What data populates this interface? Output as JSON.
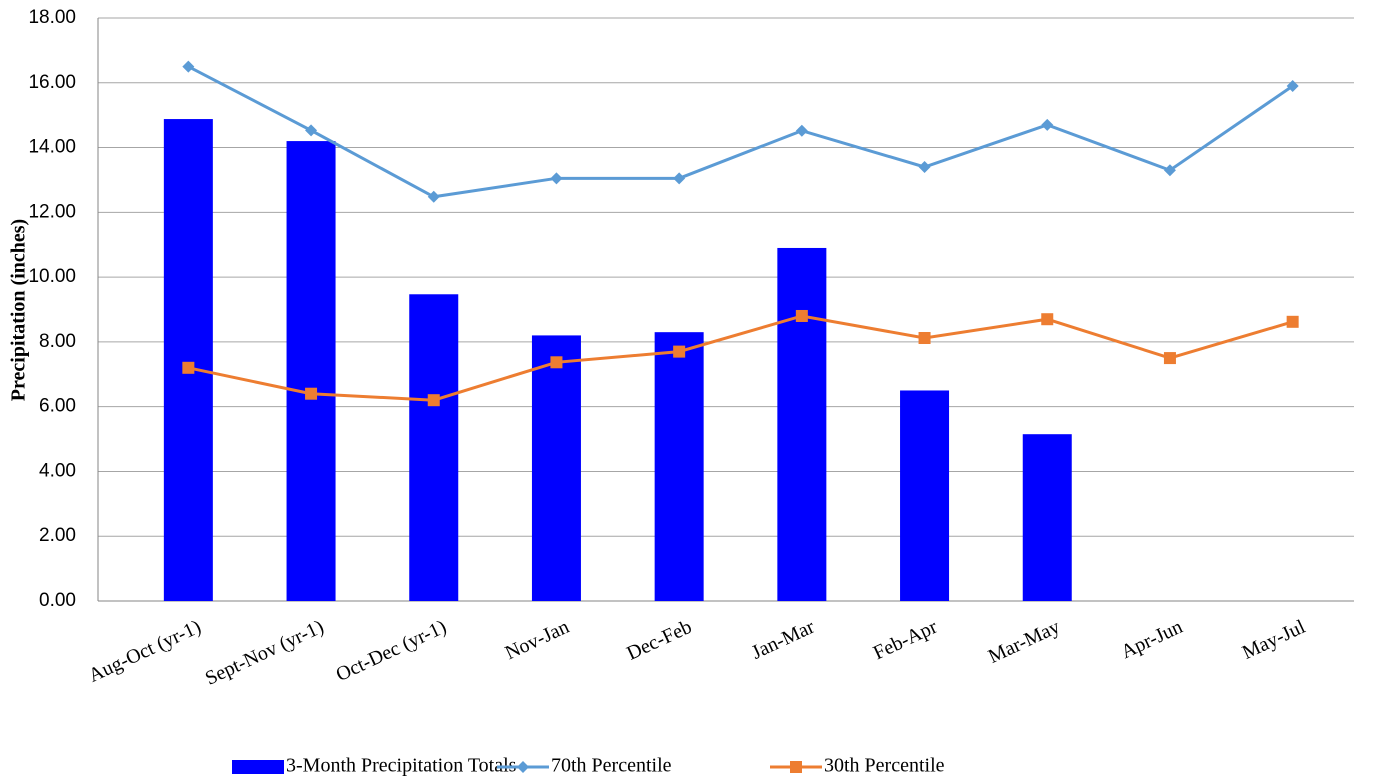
{
  "chart_data": {
    "type": "bar-line",
    "y_label": "Precipitation (inches)",
    "categories": [
      "Aug-Oct (yr-1)",
      "Sept-Nov (yr-1)",
      "Oct-Dec (yr-1)",
      "Nov-Jan",
      "Dec-Feb",
      "Jan-Mar",
      "Feb-Apr",
      "Mar-May",
      "Apr-Jun",
      "May-Jul"
    ],
    "series": [
      {
        "name": "3-Month Precipitation Totals",
        "kind": "bar",
        "color": "#0000ff",
        "values": [
          14.88,
          14.2,
          9.47,
          8.2,
          8.3,
          10.9,
          6.5,
          5.15,
          null,
          null
        ]
      },
      {
        "name": "70th Percentile",
        "kind": "line",
        "marker": "diamond",
        "color": "#5b9bd5",
        "values": [
          16.5,
          14.53,
          12.48,
          13.05,
          13.05,
          14.52,
          13.4,
          14.7,
          13.3,
          15.9
        ]
      },
      {
        "name": "30th Percentile",
        "kind": "line",
        "marker": "square",
        "color": "#ed7d31",
        "values": [
          7.2,
          6.4,
          6.2,
          7.37,
          7.7,
          8.8,
          8.12,
          8.7,
          7.5,
          8.62
        ]
      }
    ],
    "ylim": [
      0,
      18
    ],
    "yticks": [
      {
        "value": 0,
        "label": "0.00"
      },
      {
        "value": 2,
        "label": "2.00"
      },
      {
        "value": 4,
        "label": "4.00"
      },
      {
        "value": 6,
        "label": "6.00"
      },
      {
        "value": 8,
        "label": "8.00"
      },
      {
        "value": 10,
        "label": "10.00"
      },
      {
        "value": 12,
        "label": "12.00"
      },
      {
        "value": 14,
        "label": "14.00"
      },
      {
        "value": 16,
        "label": "16.00"
      },
      {
        "value": 18,
        "label": "18.00"
      }
    ],
    "grid": true,
    "legend": "bottom"
  }
}
